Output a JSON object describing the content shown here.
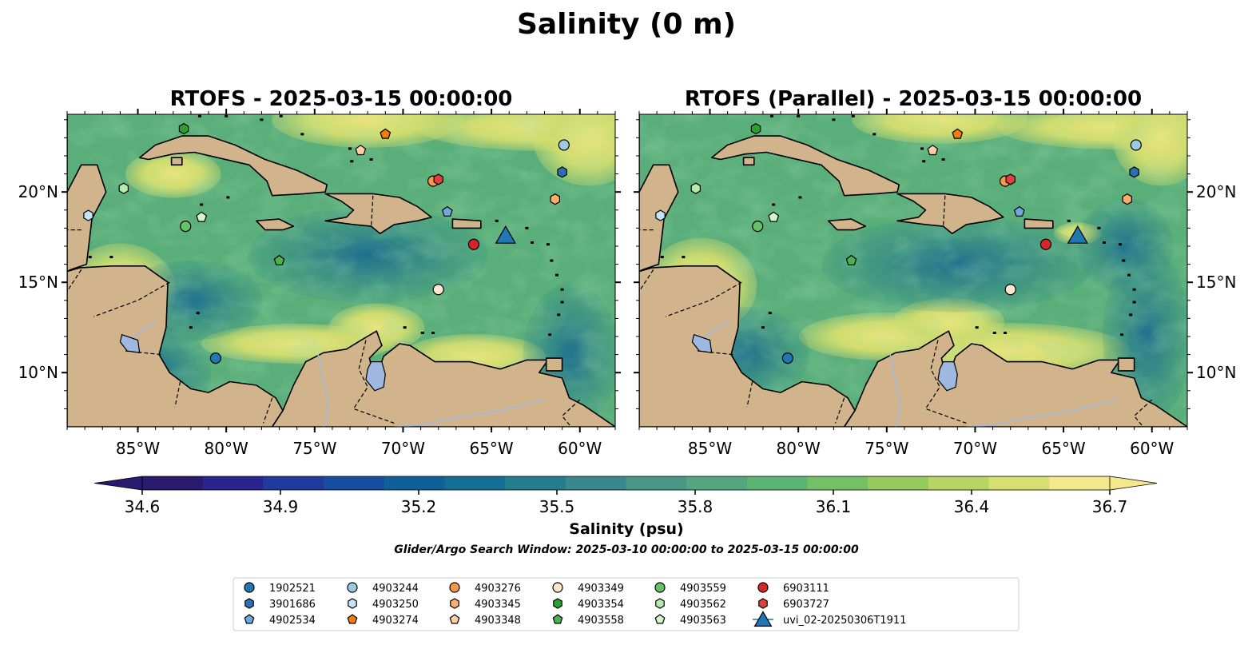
{
  "figure": {
    "title": "Salinity (0 m)",
    "search_window": "Glider/Argo Search Window: 2025-03-10 00:00:00 to 2025-03-15 00:00:00"
  },
  "panels": [
    {
      "title": "RTOFS - 2025-03-15 00:00:00"
    },
    {
      "title": "RTOFS (Parallel) - 2025-03-15 00:00:00"
    }
  ],
  "map": {
    "lon_range": [
      -89,
      -58
    ],
    "lat_range": [
      7,
      24.3
    ],
    "x_ticks": [
      {
        "lon": -85,
        "label": "85°W"
      },
      {
        "lon": -80,
        "label": "80°W"
      },
      {
        "lon": -75,
        "label": "75°W"
      },
      {
        "lon": -70,
        "label": "70°W"
      },
      {
        "lon": -65,
        "label": "65°W"
      },
      {
        "lon": -60,
        "label": "60°W"
      }
    ],
    "y_ticks": [
      {
        "lat": 10,
        "label": "10°N"
      },
      {
        "lat": 15,
        "label": "15°N"
      },
      {
        "lat": 20,
        "label": "20°N"
      }
    ],
    "land_color": "#d2b48c",
    "lake_color": "#9fb8df",
    "deep_pacific_color": "#2a1a6e"
  },
  "colorbar": {
    "label": "Salinity (psu)",
    "min": 34.6,
    "max": 36.7,
    "ticks": [
      "34.6",
      "34.9",
      "35.2",
      "35.5",
      "35.8",
      "36.1",
      "36.4",
      "36.7"
    ],
    "colormap": "haline",
    "colors": [
      "#2a1a6e",
      "#2b248f",
      "#203a9e",
      "#154e9e",
      "#0f5f98",
      "#126e93",
      "#267c8f",
      "#3a888b",
      "#4a9786",
      "#55a57e",
      "#5cb472",
      "#74c064",
      "#95cb5e",
      "#b6d563",
      "#d6df72",
      "#f3e88c"
    ]
  },
  "markers": [
    {
      "id": "1902521",
      "shape": "circle",
      "color": "#1f77b4",
      "lon": -80.6,
      "lat": 10.8
    },
    {
      "id": "3901686",
      "shape": "hexagon",
      "color": "#2b6fb6",
      "lon": -61.0,
      "lat": 21.1
    },
    {
      "id": "4902534",
      "shape": "pentagon",
      "color": "#6fa8dc",
      "lon": -67.5,
      "lat": 18.9
    },
    {
      "id": "4903244",
      "shape": "circle",
      "color": "#9ecae1",
      "lon": -60.9,
      "lat": 22.6
    },
    {
      "id": "4903250",
      "shape": "hexagon",
      "color": "#c6e4f7",
      "lon": -87.8,
      "lat": 18.7
    },
    {
      "id": "4903274",
      "shape": "pentagon",
      "color": "#f07d0e",
      "lon": -71.0,
      "lat": 23.2
    },
    {
      "id": "4903276",
      "shape": "circle",
      "color": "#f39a4a",
      "lon": -68.3,
      "lat": 20.6
    },
    {
      "id": "4903345",
      "shape": "hexagon",
      "color": "#fdae6b",
      "lon": -61.4,
      "lat": 19.6
    },
    {
      "id": "4903348",
      "shape": "pentagon",
      "color": "#fdd0a2",
      "lon": -72.4,
      "lat": 22.3
    },
    {
      "id": "4903349",
      "shape": "circle",
      "color": "#fde6cf",
      "lon": -68.0,
      "lat": 14.6
    },
    {
      "id": "4903354",
      "shape": "hexagon",
      "color": "#2ca02c",
      "lon": -82.4,
      "lat": 23.5
    },
    {
      "id": "4903558",
      "shape": "pentagon",
      "color": "#4cb34c",
      "lon": -77.0,
      "lat": 16.2
    },
    {
      "id": "4903559",
      "shape": "circle",
      "color": "#66c266",
      "lon": -82.3,
      "lat": 18.1
    },
    {
      "id": "4903562",
      "shape": "hexagon",
      "color": "#b7e9b0",
      "lon": -85.8,
      "lat": 20.2
    },
    {
      "id": "4903563",
      "shape": "pentagon",
      "color": "#d4f5c8",
      "lon": -81.4,
      "lat": 18.6
    },
    {
      "id": "6903111",
      "shape": "circle",
      "color": "#d62728",
      "lon": -66.0,
      "lat": 17.1
    },
    {
      "id": "6903727",
      "shape": "hexagon",
      "color": "#e0413f",
      "lon": -68.0,
      "lat": 20.7
    },
    {
      "id": "uvi_02-20250306T1911",
      "shape": "triangle",
      "color": "#1f77b4",
      "lon": -64.2,
      "lat": 17.6
    }
  ]
}
